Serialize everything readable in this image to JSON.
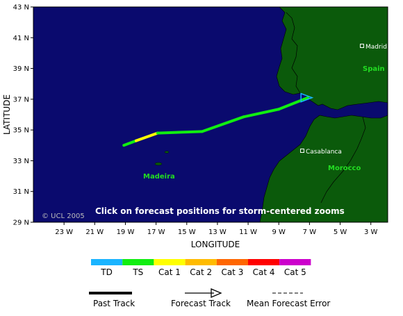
{
  "map": {
    "background_color": "#0a0a6e",
    "land_color": "#0b5a0b",
    "border_color": "#000000",
    "instruction": "Click on forecast positions for storm-centered zooms",
    "copyright": "© UCL 2005"
  },
  "axes": {
    "ylabel": "LATITUDE",
    "xlabel": "LONGITUDE",
    "y_ticks": [
      "43 N",
      "41 N",
      "39 N",
      "37 N",
      "35 N",
      "33 N",
      "31 N",
      "29 N"
    ],
    "x_ticks": [
      "23 W",
      "21 W",
      "19 W",
      "17 W",
      "15 W",
      "13 W",
      "11 W",
      "9 W",
      "7 W",
      "5 W",
      "3 W"
    ]
  },
  "places": {
    "madrid": "Madrid",
    "casablanca": "Casablanca",
    "spain": "Spain",
    "morocco": "Morocco",
    "madeira": "Madeira"
  },
  "categories": [
    {
      "label": "TD",
      "color": "#1ab4ff"
    },
    {
      "label": "TS",
      "color": "#11ee11"
    },
    {
      "label": "Cat 1",
      "color": "#ffff00"
    },
    {
      "label": "Cat 2",
      "color": "#ffbb00"
    },
    {
      "label": "Cat 3",
      "color": "#ff6600"
    },
    {
      "label": "Cat 4",
      "color": "#ff0000"
    },
    {
      "label": "Cat 5",
      "color": "#cc00cc"
    }
  ],
  "legend": {
    "past_track": "Past Track",
    "forecast_track": "Forecast Track",
    "mean_error": "Mean Forecast Error"
  },
  "track": {
    "points": [
      {
        "lon": -19.1,
        "lat": 34.0,
        "cat": "TS"
      },
      {
        "lon": -18.3,
        "lat": 34.3,
        "cat": "Cat 1"
      },
      {
        "lon": -16.9,
        "lat": 34.8,
        "cat": "TS"
      },
      {
        "lon": -14.0,
        "lat": 34.9,
        "cat": "TS"
      },
      {
        "lon": -11.3,
        "lat": 35.85,
        "cat": "TS"
      },
      {
        "lon": -9.0,
        "lat": 36.35,
        "cat": "TS"
      },
      {
        "lon": -7.1,
        "lat": 37.1,
        "cat": "TS"
      }
    ],
    "forecast_color": "#1ab4ff"
  }
}
